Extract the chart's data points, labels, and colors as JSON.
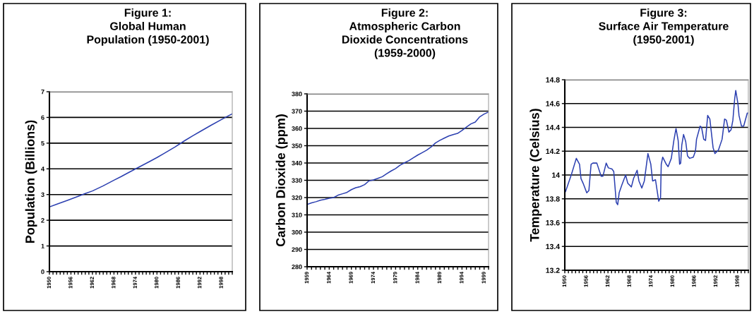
{
  "chart_data": [
    {
      "type": "line",
      "title": "Figure 1:\nGlobal Human\nPopulation (1950-2001)",
      "ylabel": "Population (Billions)",
      "x": [
        1950,
        1952,
        1955,
        1958,
        1960,
        1962,
        1965,
        1968,
        1970,
        1972,
        1975,
        1978,
        1980,
        1982,
        1985,
        1988,
        1990,
        1992,
        1995,
        1998,
        2000,
        2001
      ],
      "series": [
        {
          "color": "#2b3fb0",
          "values": [
            2.52,
            2.62,
            2.77,
            2.93,
            3.04,
            3.14,
            3.34,
            3.56,
            3.7,
            3.85,
            4.07,
            4.29,
            4.44,
            4.6,
            4.85,
            5.12,
            5.29,
            5.45,
            5.69,
            5.92,
            6.07,
            6.14
          ]
        }
      ],
      "xlim": [
        1950,
        2001
      ],
      "ylim": [
        0,
        7
      ],
      "yticks": [
        0,
        1,
        2,
        3,
        4,
        5,
        6,
        7
      ],
      "grid": "y",
      "xticks": [
        1950,
        {
          "value": 1951,
          "label": null
        },
        {
          "value": 1952,
          "label": null
        },
        {
          "value": 1953,
          "label": null
        },
        {
          "value": 1954,
          "label": null
        },
        {
          "value": 1955,
          "label": null
        },
        1956,
        {
          "value": 1957,
          "label": null
        },
        {
          "value": 1958,
          "label": null
        },
        {
          "value": 1959,
          "label": null
        },
        {
          "value": 1960,
          "label": null
        },
        {
          "value": 1961,
          "label": null
        },
        1962,
        {
          "value": 1963,
          "label": null
        },
        {
          "value": 1964,
          "label": null
        },
        {
          "value": 1965,
          "label": null
        },
        {
          "value": 1966,
          "label": null
        },
        {
          "value": 1967,
          "label": null
        },
        1968,
        {
          "value": 1969,
          "label": null
        },
        {
          "value": 1970,
          "label": null
        },
        {
          "value": 1971,
          "label": null
        },
        {
          "value": 1972,
          "label": null
        },
        {
          "value": 1973,
          "label": null
        },
        1974,
        {
          "value": 1975,
          "label": null
        },
        {
          "value": 1976,
          "label": null
        },
        {
          "value": 1977,
          "label": null
        },
        {
          "value": 1978,
          "label": null
        },
        {
          "value": 1979,
          "label": null
        },
        1980,
        {
          "value": 1981,
          "label": null
        },
        {
          "value": 1982,
          "label": null
        },
        {
          "value": 1983,
          "label": null
        },
        {
          "value": 1984,
          "label": null
        },
        {
          "value": 1985,
          "label": null
        },
        1986,
        {
          "value": 1987,
          "label": null
        },
        {
          "value": 1988,
          "label": null
        },
        {
          "value": 1989,
          "label": null
        },
        {
          "value": 1990,
          "label": null
        },
        {
          "value": 1991,
          "label": null
        },
        1992,
        {
          "value": 1993,
          "label": null
        },
        {
          "value": 1994,
          "label": null
        },
        {
          "value": 1995,
          "label": null
        },
        {
          "value": 1996,
          "label": null
        },
        {
          "value": 1997,
          "label": null
        },
        1998,
        {
          "value": 1999,
          "label": null
        },
        {
          "value": 2000,
          "label": null
        },
        {
          "value": 2001,
          "label": null
        }
      ]
    },
    {
      "type": "line",
      "title": "Figure 2:\nAtmospheric Carbon\nDioxide Concentrations\n(1959-2000)",
      "ylabel": "Carbon Dioxide (ppm)",
      "x": [
        1959,
        1960,
        1961,
        1962,
        1963,
        1964,
        1965,
        1966,
        1967,
        1968,
        1969,
        1970,
        1971,
        1972,
        1973,
        1974,
        1975,
        1976,
        1977,
        1978,
        1979,
        1980,
        1981,
        1982,
        1983,
        1984,
        1985,
        1986,
        1987,
        1988,
        1989,
        1990,
        1991,
        1992,
        1993,
        1994,
        1995,
        1996,
        1997,
        1998,
        1999,
        2000
      ],
      "series": [
        {
          "color": "#2b3fb0",
          "values": [
            316.0,
            316.9,
            317.6,
            318.5,
            319.0,
            319.6,
            320.0,
            321.4,
            322.2,
            323.0,
            324.6,
            325.7,
            326.3,
            327.5,
            329.7,
            330.2,
            331.1,
            332.1,
            333.8,
            335.4,
            336.8,
            338.7,
            340.1,
            341.4,
            343.0,
            344.6,
            346.0,
            347.4,
            349.2,
            351.6,
            353.1,
            354.4,
            355.6,
            356.4,
            357.1,
            358.8,
            360.8,
            362.6,
            363.7,
            366.7,
            368.3,
            369.5
          ]
        }
      ],
      "xlim": [
        1959,
        2000
      ],
      "ylim": [
        280,
        380
      ],
      "yticks": [
        280,
        290,
        300,
        310,
        320,
        330,
        340,
        350,
        360,
        370,
        380
      ],
      "grid": "y",
      "xticks": [
        1959,
        {
          "value": 1960,
          "label": null
        },
        {
          "value": 1961,
          "label": null
        },
        {
          "value": 1962,
          "label": null
        },
        {
          "value": 1963,
          "label": null
        },
        1964,
        {
          "value": 1965,
          "label": null
        },
        {
          "value": 1966,
          "label": null
        },
        {
          "value": 1967,
          "label": null
        },
        {
          "value": 1968,
          "label": null
        },
        1969,
        {
          "value": 1970,
          "label": null
        },
        {
          "value": 1971,
          "label": null
        },
        {
          "value": 1972,
          "label": null
        },
        {
          "value": 1973,
          "label": null
        },
        1974,
        {
          "value": 1975,
          "label": null
        },
        {
          "value": 1976,
          "label": null
        },
        {
          "value": 1977,
          "label": null
        },
        {
          "value": 1978,
          "label": null
        },
        1979,
        {
          "value": 1980,
          "label": null
        },
        {
          "value": 1981,
          "label": null
        },
        {
          "value": 1982,
          "label": null
        },
        {
          "value": 1983,
          "label": null
        },
        1984,
        {
          "value": 1985,
          "label": null
        },
        {
          "value": 1986,
          "label": null
        },
        {
          "value": 1987,
          "label": null
        },
        {
          "value": 1988,
          "label": null
        },
        1989,
        {
          "value": 1990,
          "label": null
        },
        {
          "value": 1991,
          "label": null
        },
        {
          "value": 1992,
          "label": null
        },
        {
          "value": 1993,
          "label": null
        },
        1994,
        {
          "value": 1995,
          "label": null
        },
        {
          "value": 1996,
          "label": null
        },
        {
          "value": 1997,
          "label": null
        },
        {
          "value": 1998,
          "label": null
        },
        1999,
        {
          "value": 2000,
          "label": null
        }
      ]
    },
    {
      "type": "line",
      "title": "Figure 3:\nSurface Air Temperature\n(1950-2001)",
      "ylabel": "Temperature (Celsius)",
      "x": [
        1950.2,
        1951.9,
        1953.2,
        1954.1,
        1954.5,
        1955.1,
        1956.1,
        1956.7,
        1957.3,
        1957.8,
        1958.9,
        1960.1,
        1960.6,
        1961.5,
        1962.1,
        1963.1,
        1963.6,
        1964.3,
        1964.7,
        1965.1,
        1965.9,
        1966.9,
        1967.5,
        1968.5,
        1969.1,
        1970.1,
        1970.6,
        1971.4,
        1972.1,
        1973.1,
        1973.9,
        1974.4,
        1975.2,
        1976.1,
        1976.6,
        1976.8,
        1977.2,
        1978.2,
        1978.7,
        1979.6,
        1980.3,
        1980.9,
        1981.5,
        1981.9,
        1982.2,
        1982.5,
        1983.0,
        1983.6,
        1984.1,
        1984.7,
        1985.7,
        1986.3,
        1986.6,
        1987.6,
        1988.0,
        1988.6,
        1989.1,
        1989.7,
        1990.3,
        1991.2,
        1991.7,
        1992.7,
        1993.7,
        1994.4,
        1994.9,
        1995.6,
        1996.2,
        1996.7,
        1997.2,
        1997.5,
        1998.1,
        1998.4,
        1999.1,
        1999.7,
        2000.7,
        2001.0
      ],
      "series": [
        {
          "color": "#2b3fb0",
          "values": [
            13.86,
            14.01,
            14.14,
            14.09,
            13.97,
            13.93,
            13.85,
            13.87,
            14.09,
            14.1,
            14.1,
            13.99,
            13.99,
            14.1,
            14.06,
            14.05,
            14.03,
            13.77,
            13.75,
            13.85,
            13.92,
            14.0,
            13.93,
            13.9,
            13.97,
            14.04,
            13.95,
            13.89,
            13.95,
            14.18,
            14.09,
            13.95,
            13.96,
            13.78,
            13.81,
            14.09,
            14.15,
            14.09,
            14.07,
            14.14,
            14.29,
            14.39,
            14.29,
            14.09,
            14.1,
            14.25,
            14.34,
            14.28,
            14.16,
            14.14,
            14.15,
            14.2,
            14.3,
            14.41,
            14.4,
            14.3,
            14.29,
            14.5,
            14.47,
            14.23,
            14.18,
            14.21,
            14.3,
            14.47,
            14.46,
            14.36,
            14.38,
            14.46,
            14.64,
            14.71,
            14.6,
            14.5,
            14.41,
            14.41,
            14.52,
            14.52
          ]
        }
      ],
      "xlim": [
        1950,
        2001
      ],
      "ylim": [
        13.2,
        14.8
      ],
      "grid": "y",
      "yticks": [
        13.2,
        13.4,
        13.6,
        13.8,
        14,
        14.2,
        14.4,
        14.6,
        14.8
      ],
      "xticks": [
        1950,
        {
          "value": 1951,
          "label": null
        },
        {
          "value": 1952,
          "label": null
        },
        {
          "value": 1953,
          "label": null
        },
        {
          "value": 1954,
          "label": null
        },
        {
          "value": 1955,
          "label": null
        },
        1956,
        {
          "value": 1957,
          "label": null
        },
        {
          "value": 1958,
          "label": null
        },
        {
          "value": 1959,
          "label": null
        },
        {
          "value": 1960,
          "label": null
        },
        {
          "value": 1961,
          "label": null
        },
        1962,
        {
          "value": 1963,
          "label": null
        },
        {
          "value": 1964,
          "label": null
        },
        {
          "value": 1965,
          "label": null
        },
        {
          "value": 1966,
          "label": null
        },
        {
          "value": 1967,
          "label": null
        },
        1968,
        {
          "value": 1969,
          "label": null
        },
        {
          "value": 1970,
          "label": null
        },
        {
          "value": 1971,
          "label": null
        },
        {
          "value": 1972,
          "label": null
        },
        {
          "value": 1973,
          "label": null
        },
        1974,
        {
          "value": 1975,
          "label": null
        },
        {
          "value": 1976,
          "label": null
        },
        {
          "value": 1977,
          "label": null
        },
        {
          "value": 1978,
          "label": null
        },
        {
          "value": 1979,
          "label": null
        },
        1980,
        {
          "value": 1981,
          "label": null
        },
        {
          "value": 1982,
          "label": null
        },
        {
          "value": 1983,
          "label": null
        },
        {
          "value": 1984,
          "label": null
        },
        {
          "value": 1985,
          "label": null
        },
        1986,
        {
          "value": 1987,
          "label": null
        },
        {
          "value": 1988,
          "label": null
        },
        {
          "value": 1989,
          "label": null
        },
        {
          "value": 1990,
          "label": null
        },
        {
          "value": 1991,
          "label": null
        },
        1992,
        {
          "value": 1993,
          "label": null
        },
        {
          "value": 1994,
          "label": null
        },
        {
          "value": 1995,
          "label": null
        },
        {
          "value": 1996,
          "label": null
        },
        {
          "value": 1997,
          "label": null
        },
        1998,
        {
          "value": 1999,
          "label": null
        },
        {
          "value": 2000,
          "label": null
        },
        {
          "value": 2001,
          "label": null
        }
      ]
    }
  ]
}
